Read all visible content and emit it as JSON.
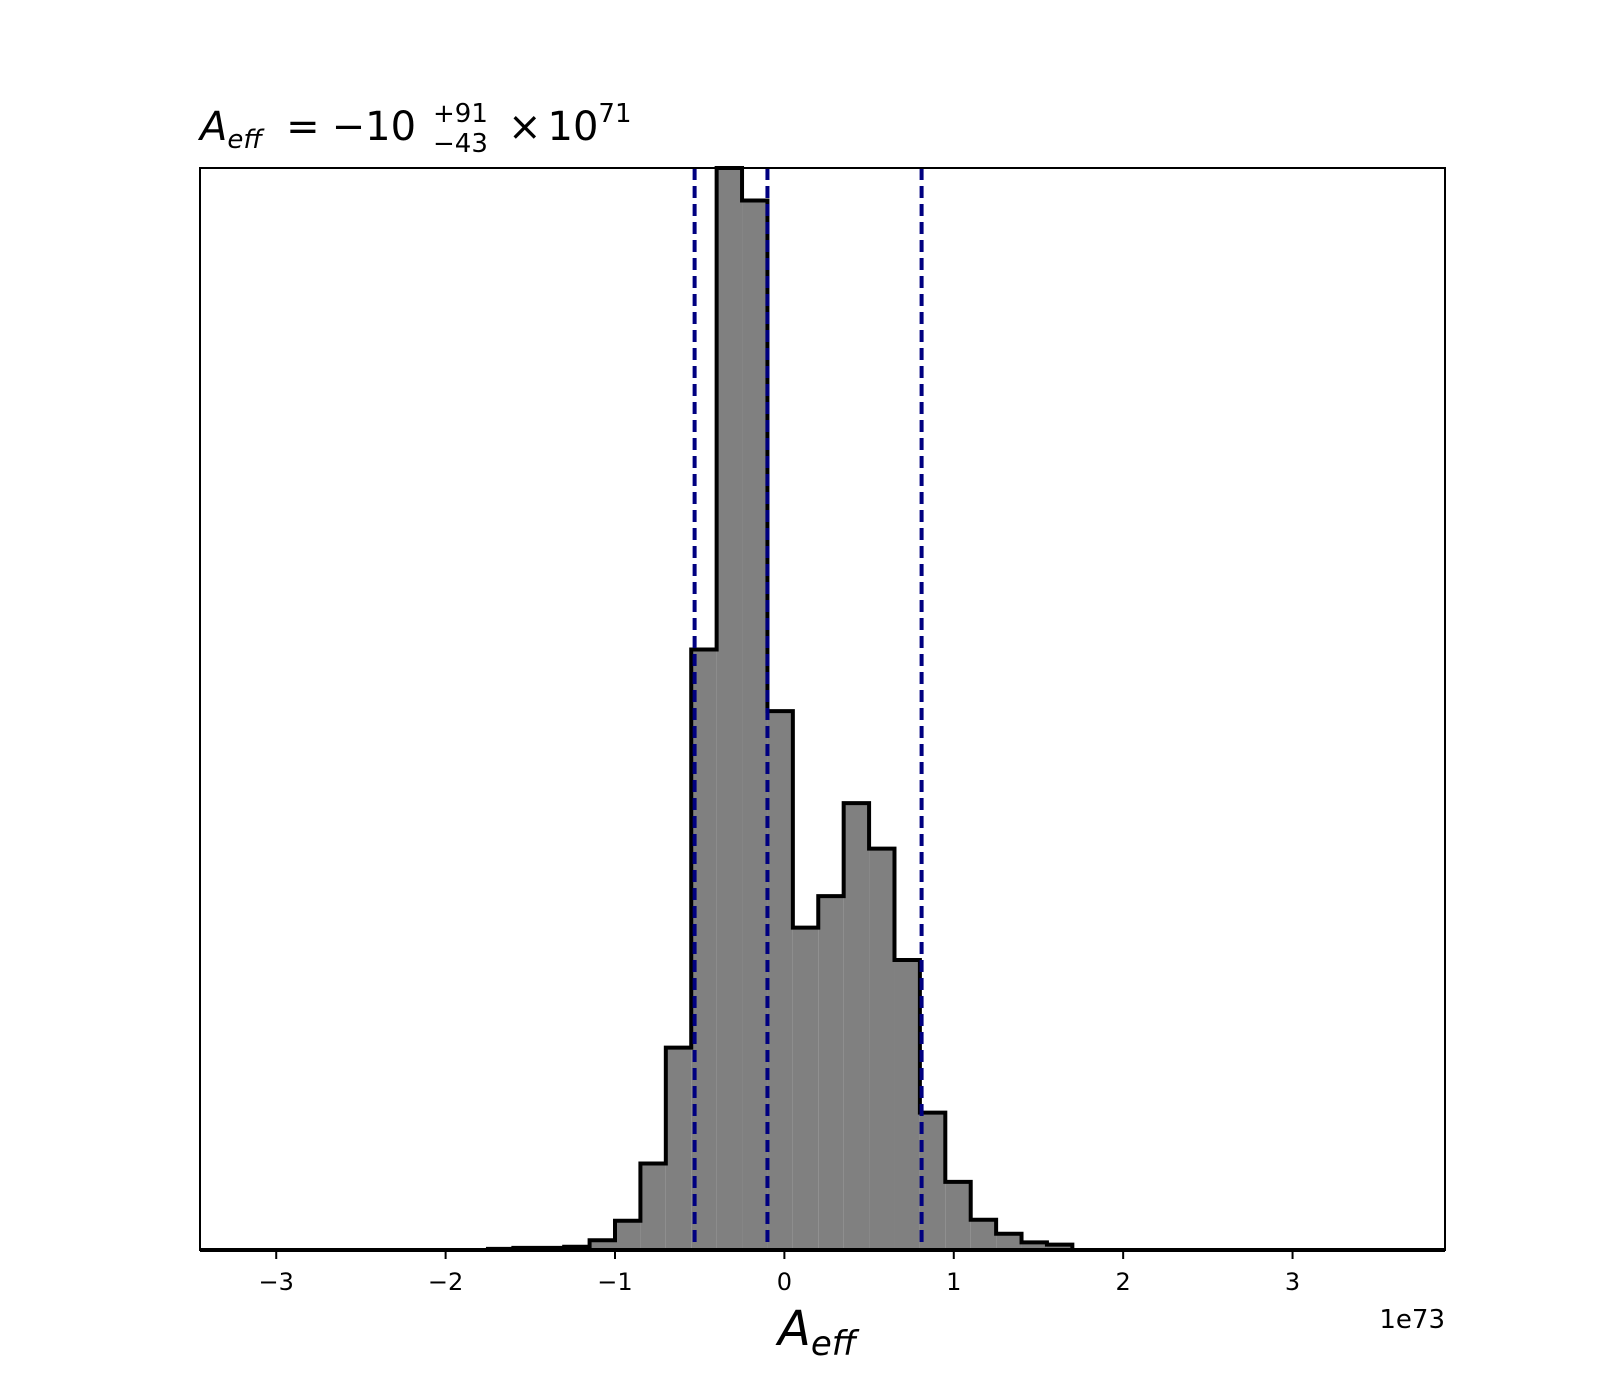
{
  "chart_data": {
    "type": "bar",
    "subtype": "histogram-step-filled",
    "title": {
      "symbol": "A",
      "subscript": "eff",
      "relation": "=",
      "value": "−10",
      "upper_err": "+91",
      "lower_err": "−43",
      "times": "×",
      "base": "10",
      "exponent": "71"
    },
    "xlabel": {
      "symbol": "A",
      "subscript": "eff"
    },
    "x_offset_label": "1e73",
    "x_ticks": [
      {
        "value": -3,
        "label": "−3"
      },
      {
        "value": -2,
        "label": "−2"
      },
      {
        "value": -1,
        "label": "−1"
      },
      {
        "value": 0,
        "label": "0"
      },
      {
        "value": 1,
        "label": "1"
      },
      {
        "value": 2,
        "label": "2"
      },
      {
        "value": 3,
        "label": "3"
      }
    ],
    "xlim": [
      -3.45,
      3.9
    ],
    "ylim": [
      0,
      1.0
    ],
    "y_ticks_shown": false,
    "bin_edges": [
      -1.75,
      -1.6,
      -1.45,
      -1.3,
      -1.15,
      -1.0,
      -0.85,
      -0.7,
      -0.55,
      -0.4,
      -0.25,
      -0.1,
      0.05,
      0.2,
      0.35,
      0.5,
      0.65,
      0.8,
      0.95,
      1.1,
      1.25,
      1.4,
      1.55,
      1.7
    ],
    "counts": [
      0.001,
      0.002,
      0.002,
      0.003,
      0.009,
      0.027,
      0.08,
      0.187,
      0.555,
      1.0,
      0.97,
      0.498,
      0.298,
      0.327,
      0.413,
      0.371,
      0.268,
      0.127,
      0.063,
      0.028,
      0.015,
      0.007,
      0.005
    ],
    "quantile_lines": [
      -0.53,
      -0.1,
      0.81
    ],
    "colors": {
      "fill": "#808080",
      "edge": "#000000",
      "quantile": "#000080"
    },
    "grid": false
  }
}
